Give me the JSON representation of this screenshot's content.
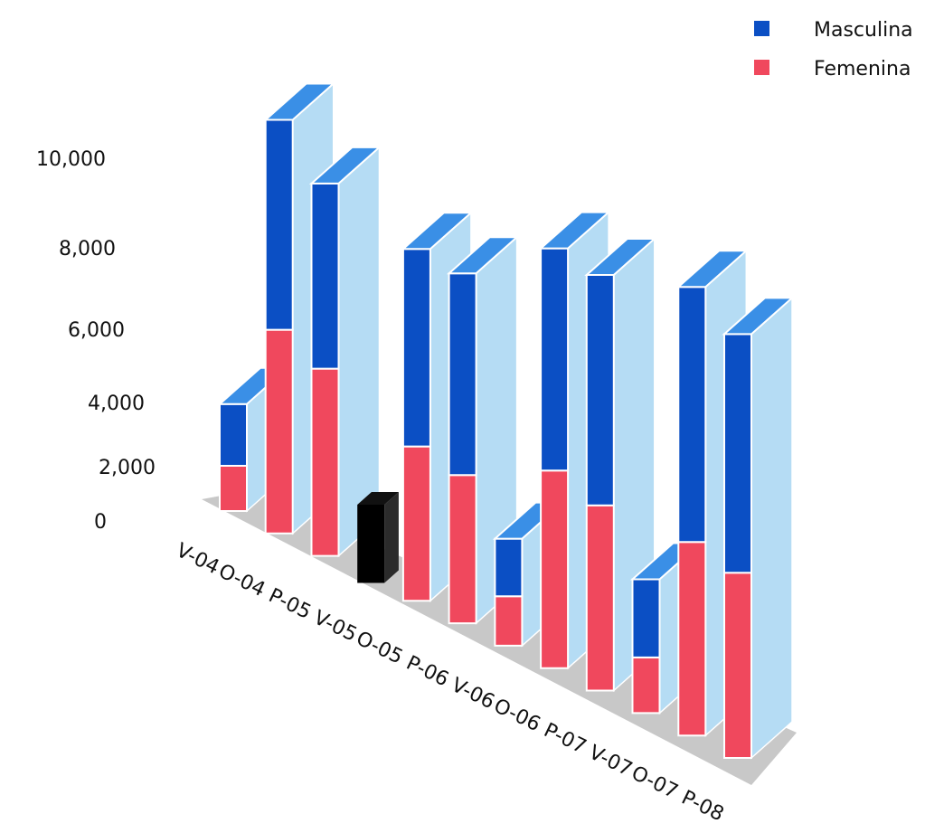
{
  "chart_data": {
    "type": "bar",
    "stacked": true,
    "three_d": true,
    "title": "",
    "xlabel": "",
    "ylabel": "",
    "ylim": [
      0,
      10000
    ],
    "y_ticks": [
      "0",
      "2,000",
      "4,000",
      "6,000",
      "8,000",
      "10,000"
    ],
    "y_tick_values": [
      0,
      2000,
      4000,
      6000,
      8000,
      10000
    ],
    "categories": [
      "V-04",
      "O-04",
      "P-05",
      "V-05",
      "O-05",
      "P-06",
      "V-06",
      "O-06",
      "P-07",
      "V-07",
      "O-07",
      "P-08"
    ],
    "series": [
      {
        "name": "Femenina",
        "values": [
          1100,
          4950,
          4550,
          0,
          3750,
          3600,
          1200,
          4800,
          4500,
          1350,
          4700,
          4500
        ]
      },
      {
        "name": "Masculina",
        "values": [
          1500,
          5100,
          4500,
          0,
          4800,
          4900,
          1400,
          5400,
          5600,
          1900,
          6200,
          5800
        ]
      }
    ],
    "legend": {
      "position": "top-right",
      "entries": [
        {
          "label": "Masculina",
          "color": "#0b4fc4"
        },
        {
          "label": "Femenina",
          "color": "#f0485d"
        }
      ]
    },
    "grid": false,
    "colors": {
      "masculina_front": "#0b4fc4",
      "masculina_top": "#3a8fe6",
      "masculina_side": "#b5dcf4",
      "femenina_front": "#f0485d",
      "floor": "#c8c8c8"
    }
  }
}
